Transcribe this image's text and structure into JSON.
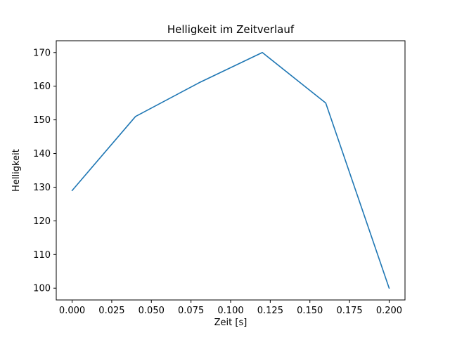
{
  "chart_data": {
    "type": "line",
    "title": "Helligkeit im Zeitverlauf",
    "xlabel": "Zeit [s]",
    "ylabel": "Helligkeit",
    "x": [
      0.0,
      0.04,
      0.08,
      0.12,
      0.16,
      0.2
    ],
    "y": [
      129,
      151,
      161,
      170,
      155,
      100
    ],
    "series": [
      {
        "name": "Helligkeit",
        "x": [
          0.0,
          0.04,
          0.08,
          0.12,
          0.16,
          0.2
        ],
        "values": [
          129,
          151,
          161,
          170,
          155,
          100
        ]
      }
    ],
    "xticks": [
      0.0,
      0.025,
      0.05,
      0.075,
      0.1,
      0.125,
      0.15,
      0.175,
      0.2
    ],
    "xtick_labels": [
      "0.000",
      "0.025",
      "0.050",
      "0.075",
      "0.100",
      "0.125",
      "0.150",
      "0.175",
      "0.200"
    ],
    "yticks": [
      100,
      110,
      120,
      130,
      140,
      150,
      160,
      170
    ],
    "ytick_labels": [
      "100",
      "110",
      "120",
      "130",
      "140",
      "150",
      "160",
      "170"
    ],
    "xlim": [
      -0.01,
      0.21
    ],
    "ylim": [
      96.5,
      173.5
    ],
    "line_color": "#1f77b4",
    "spine_color": "#000000",
    "grid": false,
    "legend_position": "none"
  }
}
